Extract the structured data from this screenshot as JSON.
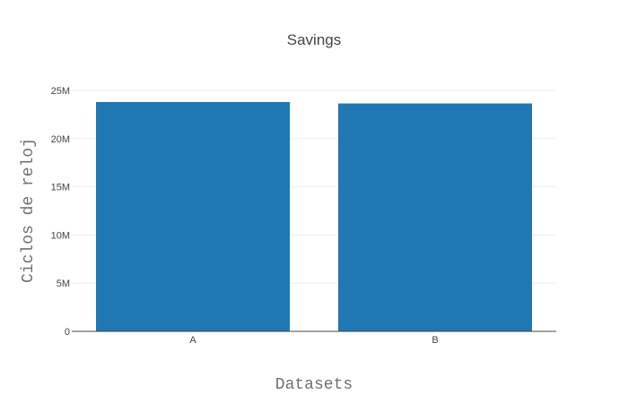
{
  "chart_data": {
    "type": "bar",
    "title": "Savings",
    "xlabel": "Datasets",
    "ylabel": "Ciclos de reloj",
    "categories": [
      "A",
      "B"
    ],
    "values": [
      23800000,
      23650000
    ],
    "ylim": [
      0,
      25000000
    ],
    "yticks": [
      0,
      5000000,
      10000000,
      15000000,
      20000000,
      25000000
    ],
    "ytick_labels": [
      "0",
      "5M",
      "10M",
      "15M",
      "20M",
      "25M"
    ],
    "grid": true,
    "legend": "none",
    "colors": {
      "bar": "#1f77b4",
      "grid": "#eeeeee",
      "axis": "#444444"
    }
  }
}
